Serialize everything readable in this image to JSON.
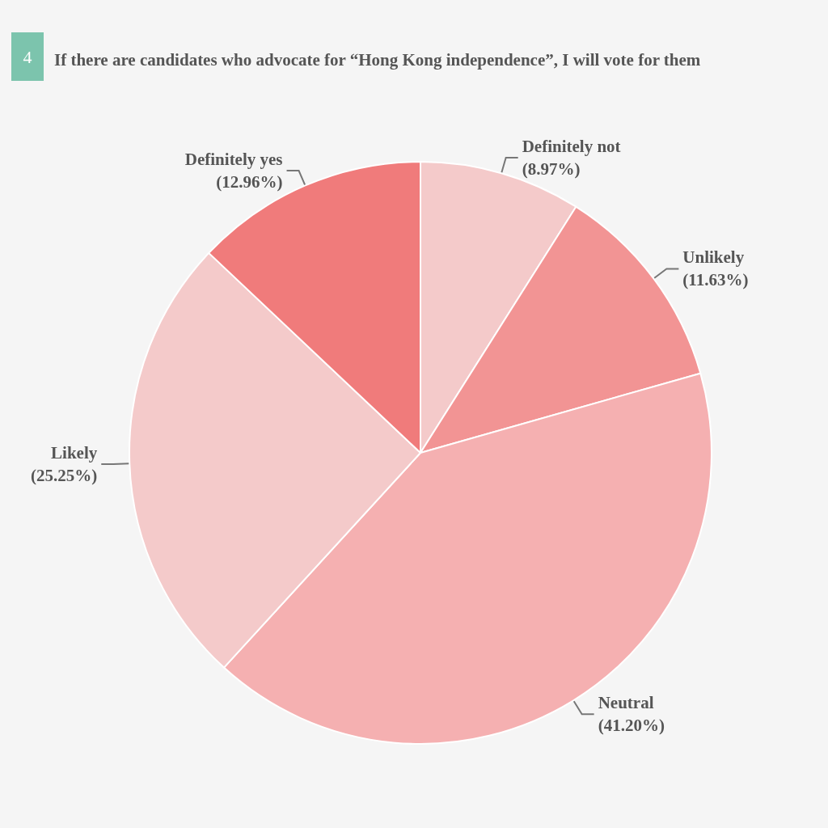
{
  "chart_data": {
    "type": "pie",
    "title": "If there are candidates who advocate for “Hong Kong independence”, I will vote for them",
    "annotations": [
      "4"
    ],
    "categories": [
      "Definitely not",
      "Unlikely",
      "Neutral",
      "Likely",
      "Definitely yes"
    ],
    "values": [
      8.97,
      11.63,
      41.2,
      25.25,
      12.96
    ],
    "value_labels": [
      "(8.97%)",
      "(11.63%)",
      "(41.20%)",
      "(25.25%)",
      "(12.96%)"
    ],
    "colors": [
      "#f4caca",
      "#f29494",
      "#f5b0b1",
      "#f4caca",
      "#f07b7b"
    ],
    "legend": false
  }
}
